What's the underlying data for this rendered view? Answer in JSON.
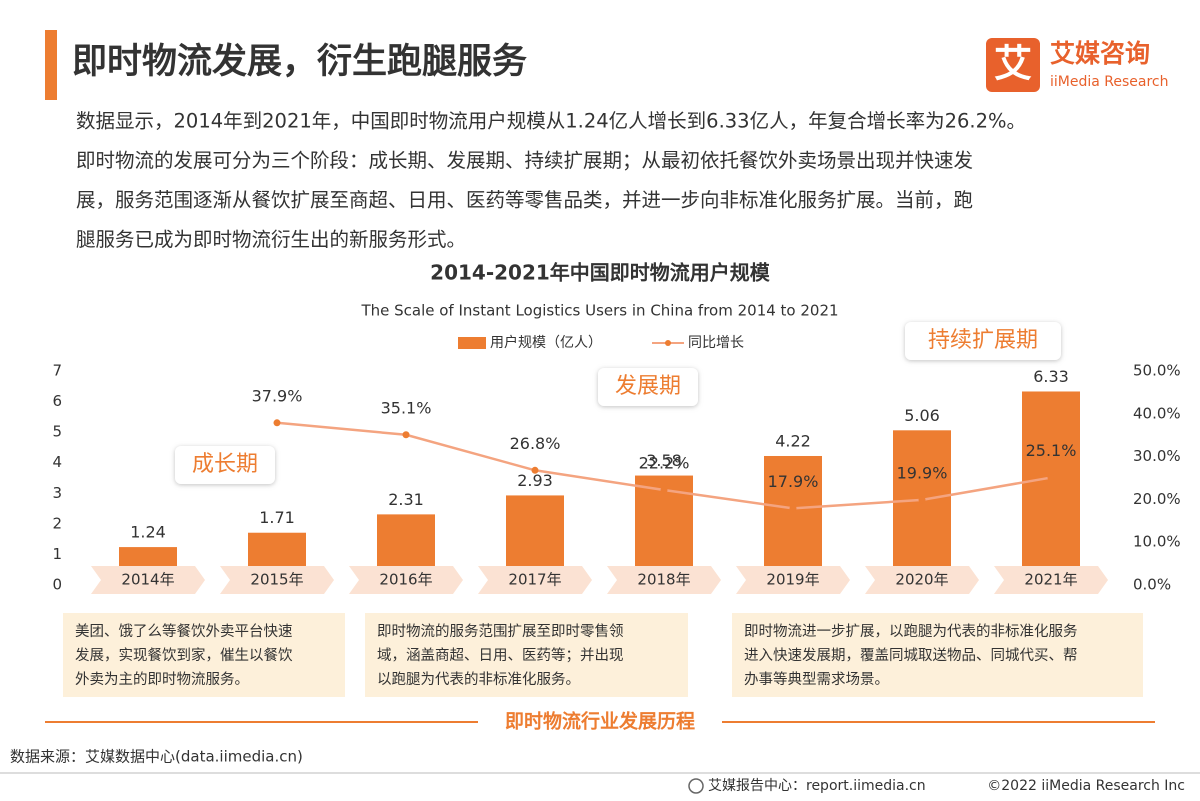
{
  "header": {
    "title": "即时物流发展，衍生跑腿服务",
    "logo_mark": "艾",
    "logo_name": "艾媒咨询",
    "logo_sub": "iiMedia Research"
  },
  "intro": {
    "lines": [
      "数据显示，2014年到2021年，中国即时物流用户规模从1.24亿人增长到6.33亿人，年复合增长率为26.2%。",
      "即时物流的发展可分为三个阶段：成长期、发展期、持续扩展期；从最初依托餐饮外卖场景出现并快速发",
      "展，服务范围逐渐从餐饮扩展至商超、日用、医药等零售品类，并进一步向非标准化服务扩展。当前，跑",
      "腿服务已成为即时物流衍生出的新服务形式。"
    ]
  },
  "chart_data": {
    "type": "bar",
    "title": "2014-2021年中国即时物流用户规模",
    "subtitle": "The Scale of Instant Logistics Users in China from 2014 to 2021",
    "categories": [
      "2014年",
      "2015年",
      "2016年",
      "2017年",
      "2018年",
      "2019年",
      "2020年",
      "2021年"
    ],
    "series": [
      {
        "name": "用户规模（亿人）",
        "type": "bar",
        "color": "#ed7d31",
        "values": [
          1.24,
          1.71,
          2.31,
          2.93,
          3.58,
          4.22,
          5.06,
          6.33
        ]
      },
      {
        "name": "同比增长",
        "type": "line",
        "axis": "y2",
        "color": "#f4a480",
        "values": [
          null,
          37.9,
          35.1,
          26.8,
          22.2,
          17.9,
          19.9,
          25.1
        ],
        "value_labels": [
          null,
          "37.9%",
          "35.1%",
          "26.8%",
          "22.2%",
          "17.9%",
          "19.9%",
          "25.1%"
        ]
      }
    ],
    "ylim": [
      0,
      7
    ],
    "yticks": [
      0,
      1,
      2,
      3,
      4,
      5,
      6,
      7
    ],
    "y2lim": [
      0,
      50
    ],
    "y2ticks": [
      {
        "value": 0,
        "label": "0.0%"
      },
      {
        "value": 10,
        "label": "10.0%"
      },
      {
        "value": 20,
        "label": "20.0%"
      },
      {
        "value": 30,
        "label": "30.0%"
      },
      {
        "value": 40,
        "label": "40.0%"
      },
      {
        "value": 50,
        "label": "50.0%"
      }
    ],
    "grid": false,
    "legend": "top"
  },
  "stages": [
    "成长期",
    "发展期",
    "持续扩展期"
  ],
  "notes": [
    [
      "美团、饿了么等餐饮外卖平台快速",
      "发展，实现餐饮到家，催生以餐饮",
      "外卖为主的即时物流服务。"
    ],
    [
      "即时物流的服务范围扩展至即时零售领",
      "域，涵盖商超、日用、医药等；并出现",
      "以跑腿为代表的非标准化服务。"
    ],
    [
      "即时物流进一步扩展，以跑腿为代表的非标准化服务",
      "进入快速发展期，覆盖同城取送物品、同城代买、帮",
      "办事等典型需求场景。"
    ]
  ],
  "timeline_label": "即时物流行业发展历程",
  "footer": {
    "source": "数据来源：艾媒数据中心(data.iimedia.cn)",
    "report": "艾媒报告中心：report.iimedia.cn",
    "copyright": "©2022  iiMedia Research  Inc"
  }
}
